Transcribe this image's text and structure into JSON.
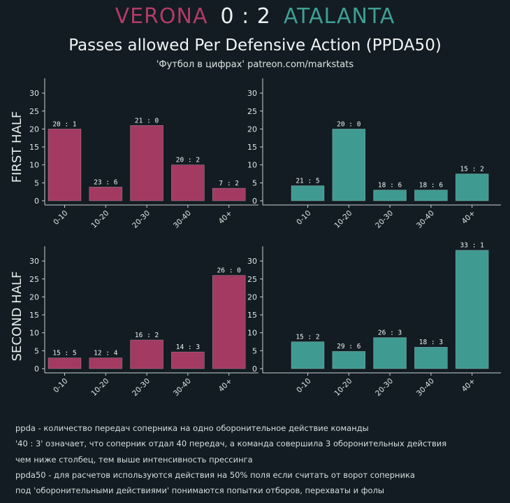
{
  "header": {
    "home_team": "VERONA",
    "score": "0 : 2",
    "away_team": "ATALANTA",
    "title": "Passes allowed Per Defensive Action (PPDA50)",
    "subtitle": "'Футбол в цифрах' patreon.com/markstats"
  },
  "colors": {
    "background": "#121c22",
    "home": "#a33a62",
    "away": "#3f9b92",
    "axis": "#c9d2d2"
  },
  "chart_data": [
    {
      "type": "bar",
      "team": "VERONA",
      "half": "FIRST HALF",
      "categories": [
        "0-10",
        "10-20",
        "20-30",
        "30-40",
        "40+"
      ],
      "values": [
        20,
        3.83,
        21,
        10,
        3.5
      ],
      "labels": [
        "20 : 1",
        "23 : 6",
        "21 : 0",
        "20 : 2",
        "7 : 2"
      ],
      "ylim": [
        0,
        33
      ],
      "yticks": [
        0,
        5,
        10,
        15,
        20,
        25,
        30
      ]
    },
    {
      "type": "bar",
      "team": "ATALANTA",
      "half": "FIRST HALF",
      "categories": [
        "0-10",
        "10-20",
        "20-30",
        "30-40",
        "40+"
      ],
      "values": [
        4.2,
        20,
        3,
        3,
        7.5
      ],
      "labels": [
        "21 : 5",
        "20 : 0",
        "18 : 6",
        "18 : 6",
        "15 : 2"
      ],
      "ylim": [
        0,
        33
      ],
      "yticks": [
        0,
        5,
        10,
        15,
        20,
        25,
        30
      ]
    },
    {
      "type": "bar",
      "team": "VERONA",
      "half": "SECOND HALF",
      "categories": [
        "0-10",
        "10-20",
        "20-30",
        "30-40",
        "40+"
      ],
      "values": [
        3,
        3,
        8,
        4.67,
        26
      ],
      "labels": [
        "15 : 5",
        "12 : 4",
        "16 : 2",
        "14 : 3",
        "26 : 0"
      ],
      "ylim": [
        0,
        33
      ],
      "yticks": [
        0,
        5,
        10,
        15,
        20,
        25,
        30
      ]
    },
    {
      "type": "bar",
      "team": "ATALANTA",
      "half": "SECOND HALF",
      "categories": [
        "0-10",
        "10-20",
        "20-30",
        "30-40",
        "40+"
      ],
      "values": [
        7.5,
        4.83,
        8.67,
        6,
        33
      ],
      "labels": [
        "15 : 2",
        "29 : 6",
        "26 : 3",
        "18 : 3",
        "33 : 1"
      ],
      "ylim": [
        0,
        33
      ],
      "yticks": [
        0,
        5,
        10,
        15,
        20,
        25,
        30
      ]
    }
  ],
  "notes": [
    "ppda - количество передач соперника на одно оборонительное действие команды",
    "'40 : 3' означает, что соперник отдал 40 передач, а команда совершила 3 оборонительных действия",
    "чем ниже столбец, тем выше интенсивность прессинга",
    "ppda50 - для расчетов используются действия на 50% поля если считать от ворот соперника",
    "под 'оборонительными действиями' понимаются попытки отборов, перехваты и фолы"
  ]
}
